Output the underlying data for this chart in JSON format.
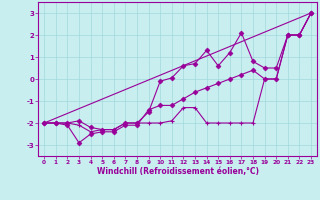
{
  "xlabel": "Windchill (Refroidissement éolien,°C)",
  "background_color": "#c8eef0",
  "grid_color": "#a0d8dc",
  "line_color": "#990099",
  "xlim": [
    -0.5,
    23.5
  ],
  "ylim": [
    -3.5,
    3.5
  ],
  "xticks": [
    0,
    1,
    2,
    3,
    4,
    5,
    6,
    7,
    8,
    9,
    10,
    11,
    12,
    13,
    14,
    15,
    16,
    17,
    18,
    19,
    20,
    21,
    22,
    23
  ],
  "yticks": [
    -3,
    -2,
    -1,
    0,
    1,
    2,
    3
  ],
  "line1_x": [
    0,
    1,
    2,
    3,
    4,
    5,
    6,
    7,
    8,
    9,
    10,
    11,
    12,
    13,
    14,
    15,
    16,
    17,
    18,
    19,
    20,
    21,
    22,
    23
  ],
  "line1_y": [
    -2.0,
    -2.0,
    -2.1,
    -2.9,
    -2.5,
    -2.4,
    -2.4,
    -2.1,
    -2.1,
    -1.4,
    -1.2,
    -1.2,
    -0.9,
    -0.6,
    -0.4,
    -0.2,
    0.0,
    0.2,
    0.4,
    0.0,
    0.0,
    2.0,
    2.0,
    3.0
  ],
  "line2_x": [
    0,
    1,
    2,
    3,
    4,
    5,
    6,
    7,
    8,
    9,
    10,
    11,
    12,
    13,
    14,
    15,
    16,
    17,
    18,
    19,
    20,
    21,
    22,
    23
  ],
  "line2_y": [
    -2.0,
    -2.0,
    -2.0,
    -2.1,
    -2.4,
    -2.3,
    -2.3,
    -2.0,
    -2.0,
    -2.0,
    -2.0,
    -1.9,
    -1.3,
    -1.3,
    -2.0,
    -2.0,
    -2.0,
    -2.0,
    -2.0,
    0.0,
    0.0,
    2.0,
    2.0,
    3.0
  ],
  "line3_x": [
    0,
    1,
    2,
    3,
    4,
    5,
    6,
    7,
    8,
    9,
    10,
    11,
    12,
    13,
    14,
    15,
    16,
    17,
    18,
    19,
    20,
    21,
    22,
    23
  ],
  "line3_y": [
    -2.0,
    -2.0,
    -2.0,
    -1.9,
    -2.2,
    -2.3,
    -2.3,
    -2.0,
    -2.0,
    -1.5,
    -0.1,
    0.05,
    0.6,
    0.7,
    1.3,
    0.6,
    1.2,
    2.1,
    0.8,
    0.5,
    0.5,
    2.0,
    2.0,
    3.0
  ],
  "line4_x": [
    0,
    23
  ],
  "line4_y": [
    -2.0,
    3.0
  ]
}
